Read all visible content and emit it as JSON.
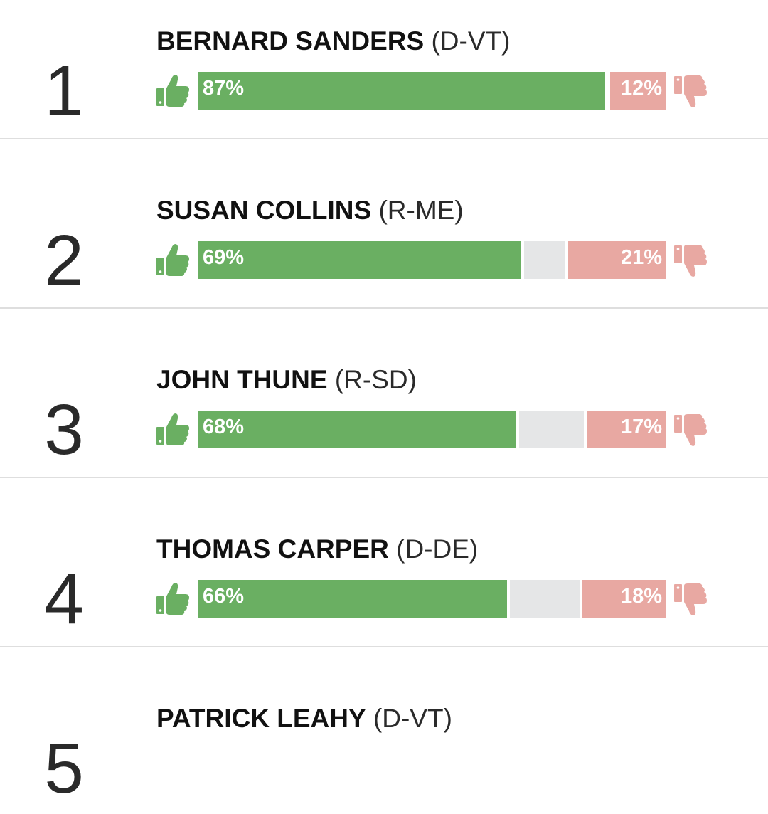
{
  "chart_data": {
    "type": "bar",
    "orientation": "horizontal",
    "stacked": true,
    "colors": {
      "approve": "#6aaf62",
      "neutral": "#e5e6e7",
      "disapprove": "#e8a8a2"
    },
    "icons": {
      "approve": "thumbs-up-icon",
      "disapprove": "thumbs-down-icon"
    },
    "rows": [
      {
        "rank": "1",
        "name": "BERNARD SANDERS",
        "party": "(D-VT)",
        "approve": 87,
        "disapprove": 12,
        "approve_label": "87%",
        "disapprove_label": "12%"
      },
      {
        "rank": "2",
        "name": "SUSAN COLLINS",
        "party": "(R-ME)",
        "approve": 69,
        "disapprove": 21,
        "approve_label": "69%",
        "disapprove_label": "21%"
      },
      {
        "rank": "3",
        "name": "JOHN THUNE",
        "party": "(R-SD)",
        "approve": 68,
        "disapprove": 17,
        "approve_label": "68%",
        "disapprove_label": "17%"
      },
      {
        "rank": "4",
        "name": "THOMAS CARPER",
        "party": "(D-DE)",
        "approve": 66,
        "disapprove": 18,
        "approve_label": "66%",
        "disapprove_label": "18%"
      },
      {
        "rank": "5",
        "name": "PATRICK LEAHY",
        "party": "(D-VT)"
      }
    ]
  }
}
